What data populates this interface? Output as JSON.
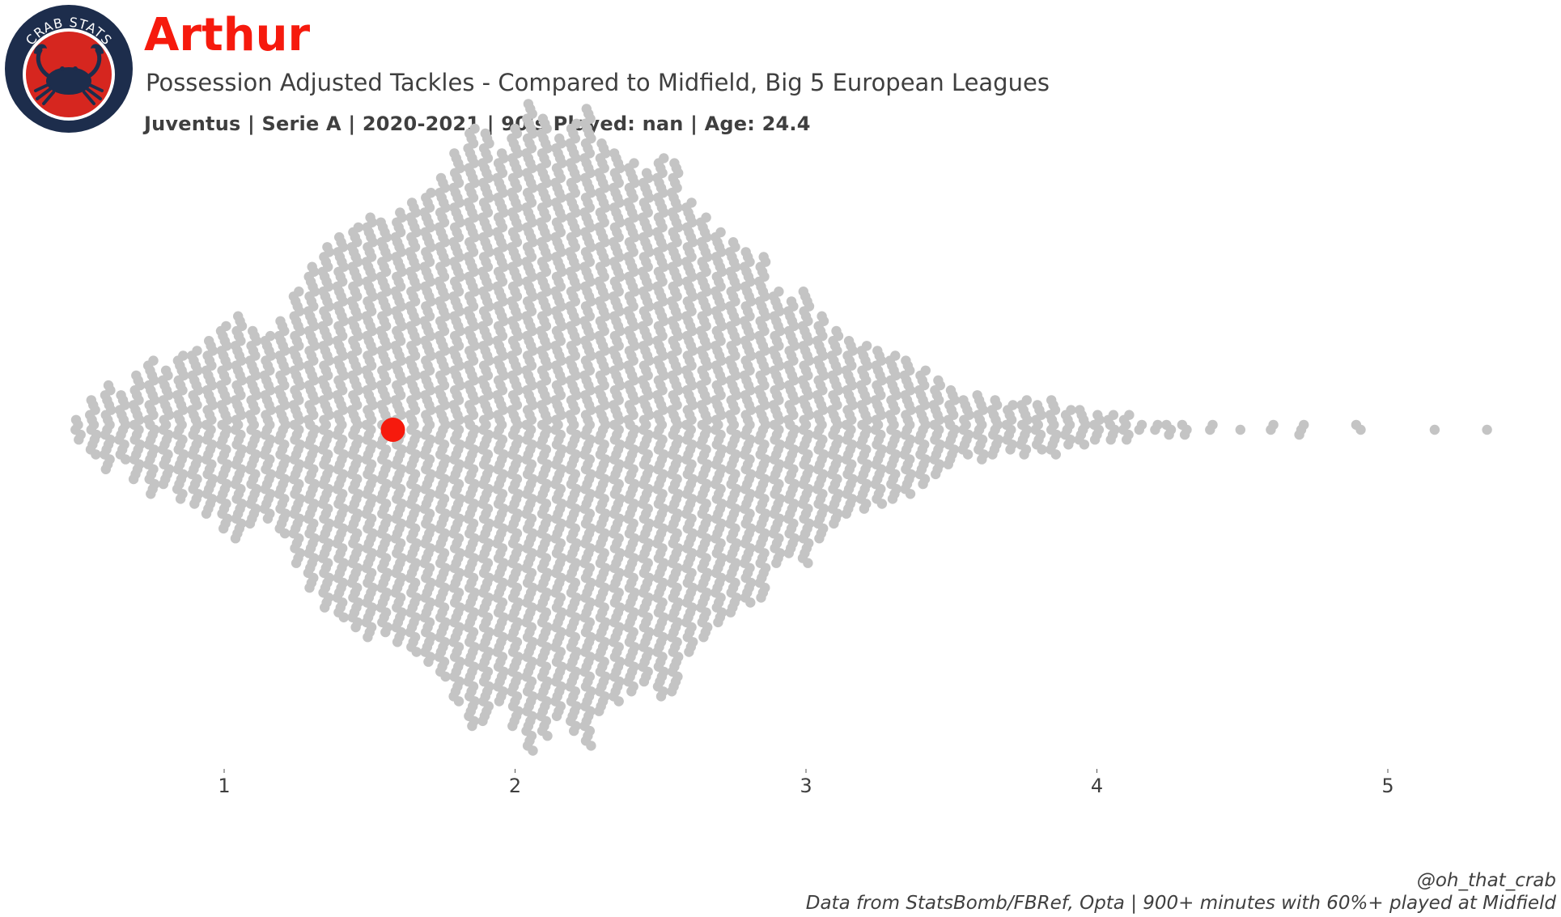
{
  "header": {
    "logo_text": "CRAB STATS",
    "player_name": "Arthur",
    "subtitle": "Possession Adjusted Tackles - Compared to Midfield, Big 5 European Leagues",
    "info": "Juventus  | Serie A | 2020-2021 | 90's Played: nan | Age: 24.4"
  },
  "colors": {
    "highlight": "#f61a0d",
    "dots": "#c4c4c4",
    "title": "#f61a0d",
    "text": "#3f3f3f",
    "logo_ring": "#1d2d4c",
    "logo_fill": "#d6261f"
  },
  "chart_data": {
    "type": "scatter",
    "variant": "beeswarm",
    "title": "",
    "xlabel": "",
    "ylabel": "",
    "grid": false,
    "legend": "none",
    "xlim": [
      0.5,
      5.4
    ],
    "xticks": [
      1,
      2,
      3,
      4,
      5
    ],
    "highlight": {
      "name": "Arthur",
      "x": 1.58
    },
    "distribution": {
      "bins": [
        [
          0.5,
          5
        ],
        [
          0.55,
          12
        ],
        [
          0.6,
          18
        ],
        [
          0.65,
          14
        ],
        [
          0.7,
          22
        ],
        [
          0.75,
          28
        ],
        [
          0.8,
          24
        ],
        [
          0.85,
          30
        ],
        [
          0.9,
          32
        ],
        [
          0.95,
          36
        ],
        [
          1.0,
          42
        ],
        [
          1.05,
          46
        ],
        [
          1.1,
          40
        ],
        [
          1.15,
          38
        ],
        [
          1.2,
          44
        ],
        [
          1.25,
          56
        ],
        [
          1.3,
          66
        ],
        [
          1.35,
          74
        ],
        [
          1.4,
          78
        ],
        [
          1.45,
          82
        ],
        [
          1.5,
          86
        ],
        [
          1.55,
          84
        ],
        [
          1.6,
          88
        ],
        [
          1.65,
          92
        ],
        [
          1.7,
          96
        ],
        [
          1.75,
          102
        ],
        [
          1.8,
          112
        ],
        [
          1.85,
          122
        ],
        [
          1.9,
          120
        ],
        [
          1.95,
          112
        ],
        [
          2.0,
          122
        ],
        [
          2.05,
          132
        ],
        [
          2.1,
          126
        ],
        [
          2.15,
          118
        ],
        [
          2.2,
          124
        ],
        [
          2.25,
          130
        ],
        [
          2.3,
          116
        ],
        [
          2.35,
          112
        ],
        [
          2.4,
          108
        ],
        [
          2.45,
          104
        ],
        [
          2.5,
          110
        ],
        [
          2.55,
          108
        ],
        [
          2.6,
          92
        ],
        [
          2.65,
          86
        ],
        [
          2.7,
          80
        ],
        [
          2.75,
          76
        ],
        [
          2.8,
          72
        ],
        [
          2.85,
          70
        ],
        [
          2.9,
          56
        ],
        [
          2.95,
          52
        ],
        [
          3.0,
          56
        ],
        [
          3.05,
          46
        ],
        [
          3.1,
          40
        ],
        [
          3.15,
          36
        ],
        [
          3.2,
          34
        ],
        [
          3.25,
          32
        ],
        [
          3.3,
          30
        ],
        [
          3.35,
          28
        ],
        [
          3.4,
          24
        ],
        [
          3.45,
          20
        ],
        [
          3.5,
          16
        ],
        [
          3.55,
          12
        ],
        [
          3.6,
          14
        ],
        [
          3.65,
          12
        ],
        [
          3.7,
          10
        ],
        [
          3.75,
          12
        ],
        [
          3.8,
          10
        ],
        [
          3.85,
          12
        ],
        [
          3.9,
          8
        ],
        [
          3.95,
          8
        ],
        [
          4.0,
          6
        ],
        [
          4.05,
          6
        ],
        [
          4.1,
          6
        ],
        [
          4.15,
          2
        ],
        [
          4.2,
          2
        ],
        [
          4.25,
          3
        ],
        [
          4.3,
          3
        ],
        [
          4.4,
          2
        ],
        [
          4.5,
          1
        ],
        [
          4.6,
          2
        ],
        [
          4.7,
          3
        ],
        [
          4.9,
          2
        ],
        [
          5.15,
          1
        ],
        [
          5.35,
          1
        ]
      ]
    }
  },
  "footer": {
    "handle": "@oh_that_crab",
    "source": "Data from StatsBomb/FBRef, Opta | 900+ minutes with 60%+ played at Midfield"
  }
}
